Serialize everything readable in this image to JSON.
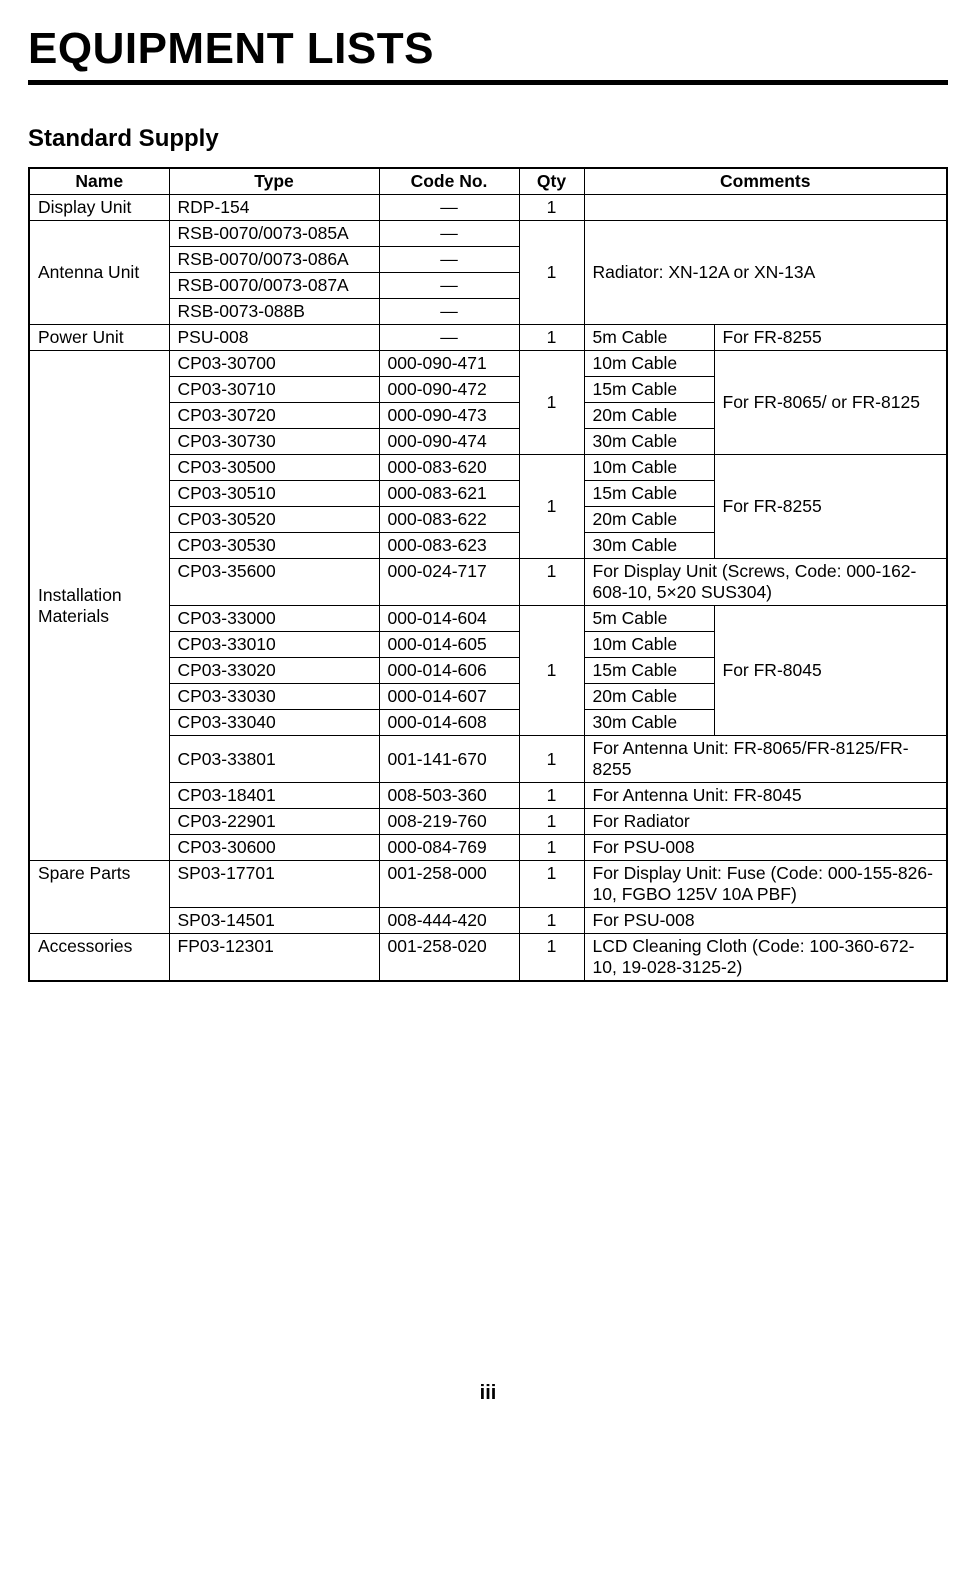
{
  "page_title": "EQUIPMENT LISTS",
  "section_title": "Standard Supply",
  "page_number": "iii",
  "headers": {
    "name": "Name",
    "type": "Type",
    "code": "Code No.",
    "qty": "Qty",
    "comments": "Comments"
  },
  "display_unit": {
    "name": "Display Unit",
    "type": "RDP-154",
    "code": "—",
    "qty": "1",
    "comments": ""
  },
  "antenna_unit": {
    "name": "Antenna Unit",
    "types": [
      "RSB-0070/0073-085A",
      "RSB-0070/0073-086A",
      "RSB-0070/0073-087A",
      "RSB-0073-088B"
    ],
    "code": "—",
    "qty": "1",
    "comments": "Radiator: XN-12A or XN-13A"
  },
  "power_unit": {
    "name": "Power Unit",
    "type": "PSU-008",
    "code": "—",
    "qty": "1",
    "comment1": "5m Cable",
    "comment2": "For FR-8255"
  },
  "installation": {
    "name": "Installation Materials",
    "group1": {
      "rows": [
        {
          "type": "CP03-30700",
          "code": "000-090-471",
          "c1": "10m Cable"
        },
        {
          "type": "CP03-30710",
          "code": "000-090-472",
          "c1": "15m Cable"
        },
        {
          "type": "CP03-30720",
          "code": "000-090-473",
          "c1": "20m Cable"
        },
        {
          "type": "CP03-30730",
          "code": "000-090-474",
          "c1": "30m Cable"
        }
      ],
      "qty": "1",
      "comment2": "For FR-8065/ or FR-8125"
    },
    "group2": {
      "rows": [
        {
          "type": "CP03-30500",
          "code": "000-083-620",
          "c1": "10m Cable"
        },
        {
          "type": "CP03-30510",
          "code": "000-083-621",
          "c1": "15m Cable"
        },
        {
          "type": "CP03-30520",
          "code": "000-083-622",
          "c1": "20m Cable"
        },
        {
          "type": "CP03-30530",
          "code": "000-083-623",
          "c1": "30m Cable"
        }
      ],
      "qty": "1",
      "comment2": "For FR-8255"
    },
    "row35600": {
      "type": "CP03-35600",
      "code": "000-024-717",
      "qty": "1",
      "comments": "For Display Unit (Screws, Code: 000-162-608-10, 5×20 SUS304)"
    },
    "group3": {
      "rows": [
        {
          "type": "CP03-33000",
          "code": "000-014-604",
          "c1": "5m Cable"
        },
        {
          "type": "CP03-33010",
          "code": "000-014-605",
          "c1": "10m Cable"
        },
        {
          "type": "CP03-33020",
          "code": "000-014-606",
          "c1": "15m Cable"
        },
        {
          "type": "CP03-33030",
          "code": "000-014-607",
          "c1": "20m Cable"
        },
        {
          "type": "CP03-33040",
          "code": "000-014-608",
          "c1": "30m Cable"
        }
      ],
      "qty": "1",
      "comment2": "For FR-8045"
    },
    "row33801": {
      "type": "CP03-33801",
      "code": "001-141-670",
      "qty": "1",
      "comments": "For Antenna Unit: FR-8065/FR-8125/FR-8255"
    },
    "row18401": {
      "type": "CP03-18401",
      "code": "008-503-360",
      "qty": "1",
      "comments": "For Antenna Unit: FR-8045"
    },
    "row22901": {
      "type": "CP03-22901",
      "code": "008-219-760",
      "qty": "1",
      "comments": "For Radiator"
    },
    "row30600": {
      "type": "CP03-30600",
      "code": "000-084-769",
      "qty": "1",
      "comments": "For PSU-008"
    }
  },
  "spare_parts": {
    "name": "Spare Parts",
    "row1": {
      "type": "SP03-17701",
      "code": "001-258-000",
      "qty": "1",
      "comments": "For Display Unit: Fuse (Code: 000-155-826-10, FGBO 125V 10A PBF)"
    },
    "row2": {
      "type": "SP03-14501",
      "code": "008-444-420",
      "qty": "1",
      "comments": "For PSU-008"
    }
  },
  "accessories": {
    "name": "Accessories",
    "row1": {
      "type": "FP03-12301",
      "code": "001-258-020",
      "qty": "1",
      "comments": "LCD Cleaning Cloth (Code: 100-360-672-10, 19-028-3125-2)"
    }
  }
}
